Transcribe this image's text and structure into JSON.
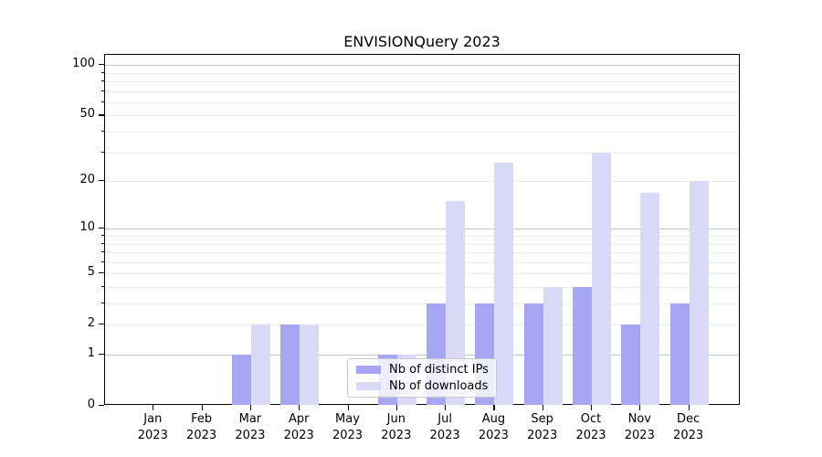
{
  "title": "ENVISIONQuery 2023",
  "chart_data": {
    "type": "bar",
    "title": "ENVISIONQuery 2023",
    "categories": [
      "Jan 2023",
      "Feb 2023",
      "Mar 2023",
      "Apr 2023",
      "May 2023",
      "Jun 2023",
      "Jul 2023",
      "Aug 2023",
      "Sep 2023",
      "Oct 2023",
      "Nov 2023",
      "Dec 2023"
    ],
    "x_tick_months": [
      "Jan",
      "Feb",
      "Mar",
      "Apr",
      "May",
      "Jun",
      "Jul",
      "Aug",
      "Sep",
      "Oct",
      "Nov",
      "Dec"
    ],
    "x_tick_year": "2023",
    "series": [
      {
        "name": "Nb of distinct IPs",
        "color": "#a6a6f2",
        "values": [
          0,
          0,
          1,
          2,
          0,
          1,
          3,
          3,
          3,
          4,
          2,
          3
        ]
      },
      {
        "name": "Nb of downloads",
        "color": "#d9d9f7",
        "values": [
          0,
          0,
          2,
          2,
          0,
          1,
          15,
          26,
          4,
          30,
          17,
          20
        ]
      }
    ],
    "ylabel": "",
    "xlabel": "",
    "y_scale": "log10(1+v)",
    "ylim": [
      0,
      112
    ],
    "y_ticks_labeled": [
      0,
      1,
      2,
      5,
      10,
      20,
      50,
      100
    ],
    "y_gridlines_major": [
      1,
      10,
      100
    ],
    "y_gridlines_minor": [
      2,
      3,
      4,
      5,
      6,
      7,
      8,
      9,
      20,
      30,
      40,
      50,
      60,
      70,
      80,
      90
    ],
    "grid": "horizontal",
    "legend_position": "lower center",
    "colors": {
      "bar_distinct_ips": "#a6a6f2",
      "bar_downloads": "#d9d9f7",
      "grid_major": "#c3c3c3",
      "grid_minor": "#ebebeb",
      "spine": "#000000",
      "legend_border": "#c9c9c9"
    }
  }
}
